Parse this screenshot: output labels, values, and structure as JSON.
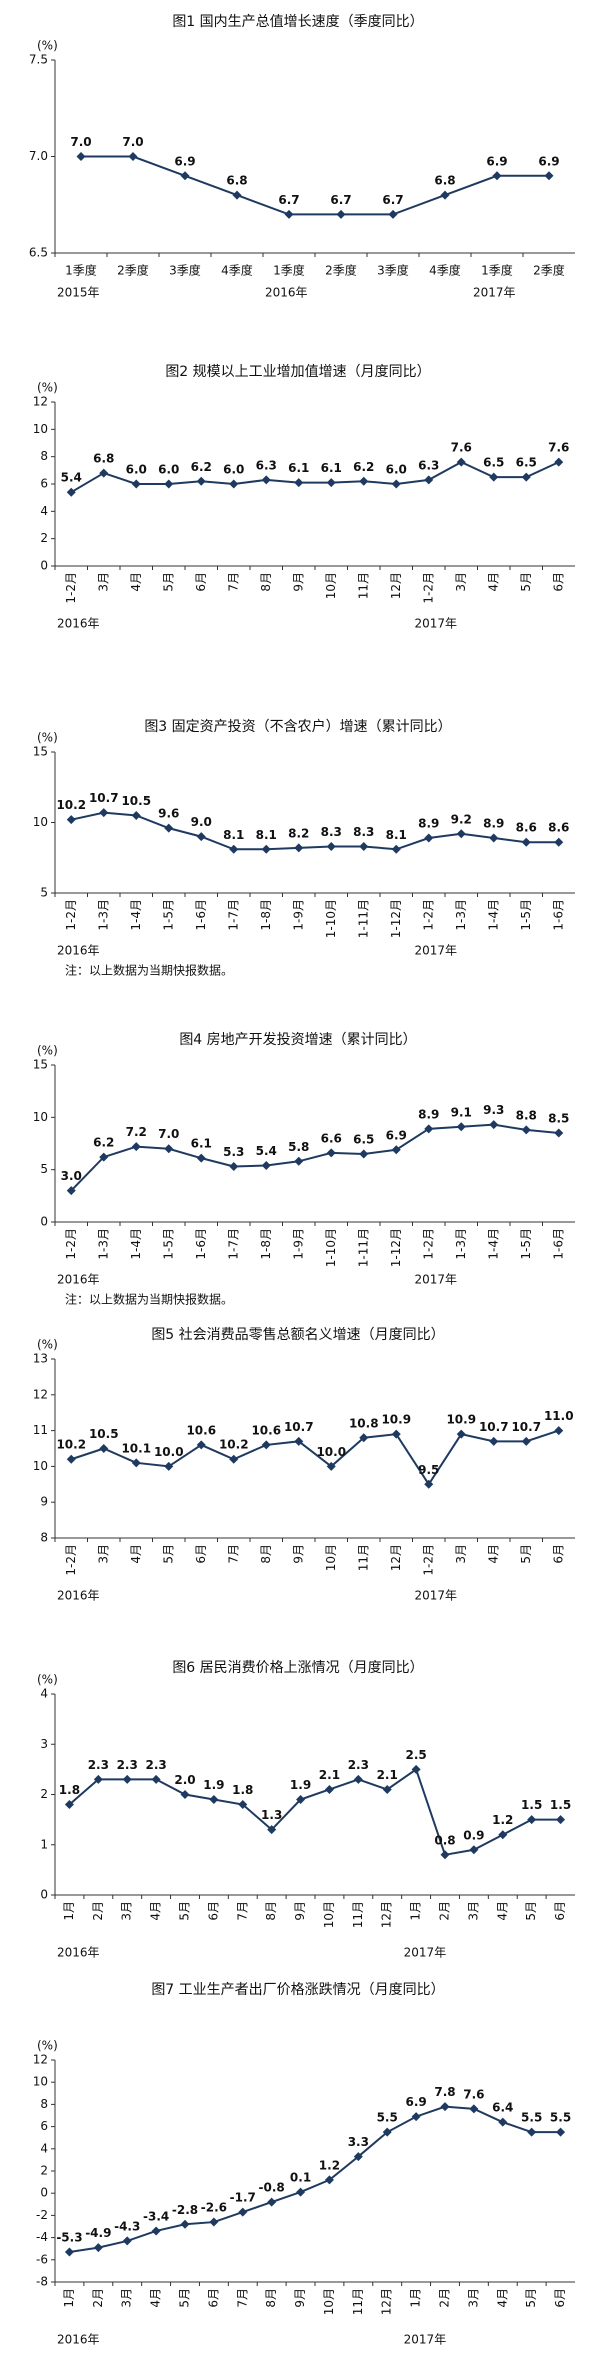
{
  "chart_data": [
    {
      "type": "line",
      "title": "图1  国内生产总值增长速度（季度同比）",
      "y_unit": "(%)",
      "color": "#1f3a60",
      "categories": [
        "1季度",
        "2季度",
        "3季度",
        "4季度",
        "1季度",
        "2季度",
        "3季度",
        "4季度",
        "1季度",
        "2季度"
      ],
      "year_labels": [
        "2015年",
        "2016年",
        "2017年"
      ],
      "values": [
        7.0,
        7.0,
        6.9,
        6.8,
        6.7,
        6.7,
        6.7,
        6.8,
        6.9,
        6.9
      ],
      "value_labels": [
        "7.0",
        "7.0",
        "6.9",
        "6.8",
        "6.7",
        "6.7",
        "6.7",
        "6.8",
        "6.9",
        "6.9"
      ],
      "ylim": [
        6.5,
        7.5
      ],
      "yticks": [
        6.5,
        {
          "value": 7,
          "label": "7.0"
        },
        7.5
      ]
    },
    {
      "type": "line",
      "title": "图2  规模以上工业增加值增速（月度同比）",
      "y_unit": "(%)",
      "color": "#1f3a60",
      "categories": [
        "1-2月",
        "3月",
        "4月",
        "5月",
        "6月",
        "7月",
        "8月",
        "9月",
        "10月",
        "11月",
        "12月",
        "1-2月",
        "3月",
        "4月",
        "5月",
        "6月"
      ],
      "year_labels": [
        "2016年",
        "2017年"
      ],
      "values": [
        5.4,
        6.8,
        6.0,
        6.0,
        6.2,
        6.0,
        6.3,
        6.1,
        6.1,
        6.2,
        6.0,
        6.3,
        7.6,
        6.5,
        6.5,
        7.6
      ],
      "value_labels": [
        "5.4",
        "6.8",
        "6.0",
        "6.0",
        "6.2",
        "6.0",
        "6.3",
        "6.1",
        "6.1",
        "6.2",
        "6.0",
        "6.3",
        "7.6",
        "6.5",
        "6.5",
        "7.6"
      ],
      "ylim": [
        0,
        12
      ],
      "yticks": [
        0,
        2,
        4,
        6,
        8,
        10,
        12
      ]
    },
    {
      "type": "line",
      "title": "图3  固定资产投资（不含农户）增速（累计同比）",
      "y_unit": "(%)",
      "color": "#1f3a60",
      "categories": [
        "1-2月",
        "1-3月",
        "1-4月",
        "1-5月",
        "1-6月",
        "1-7月",
        "1-8月",
        "1-9月",
        "1-10月",
        "1-11月",
        "1-12月",
        "1-2月",
        "1-3月",
        "1-4月",
        "1-5月",
        "1-6月"
      ],
      "year_labels": [
        "2016年",
        "2017年"
      ],
      "values": [
        10.2,
        10.7,
        10.5,
        9.6,
        9.0,
        8.1,
        8.1,
        8.2,
        8.3,
        8.3,
        8.1,
        8.9,
        9.2,
        8.9,
        8.6,
        8.6
      ],
      "value_labels": [
        "10.2",
        "10.7",
        "10.5",
        "9.6",
        "9.0",
        "8.1",
        "8.1",
        "8.2",
        "8.3",
        "8.3",
        "8.1",
        "8.9",
        "9.2",
        "8.9",
        "8.6",
        "8.6"
      ],
      "ylim": [
        5,
        15
      ],
      "yticks": [
        5,
        10,
        15
      ],
      "note": "注：以上数据为当期快报数据。"
    },
    {
      "type": "line",
      "title": "图4  房地产开发投资增速（累计同比）",
      "y_unit": "(%)",
      "color": "#1f3a60",
      "categories": [
        "1-2月",
        "1-3月",
        "1-4月",
        "1-5月",
        "1-6月",
        "1-7月",
        "1-8月",
        "1-9月",
        "1-10月",
        "1-11月",
        "1-12月",
        "1-2月",
        "1-3月",
        "1-4月",
        "1-5月",
        "1-6月"
      ],
      "year_labels": [
        "2016年",
        "2017年"
      ],
      "values": [
        3.0,
        6.2,
        7.2,
        7.0,
        6.1,
        5.3,
        5.4,
        5.8,
        6.6,
        6.5,
        6.9,
        8.9,
        9.1,
        9.3,
        8.8,
        8.5
      ],
      "value_labels": [
        "3.0",
        "6.2",
        "7.2",
        "7.0",
        "6.1",
        "5.3",
        "5.4",
        "5.8",
        "6.6",
        "6.5",
        "6.9",
        "8.9",
        "9.1",
        "9.3",
        "8.8",
        "8.5"
      ],
      "ylim": [
        0,
        15
      ],
      "yticks": [
        0,
        5,
        10,
        15
      ],
      "note": "注：以上数据为当期快报数据。"
    },
    {
      "type": "line",
      "title": "图5  社会消费品零售总额名义增速（月度同比）",
      "y_unit": "(%)",
      "color": "#1f3a60",
      "categories": [
        "1-2月",
        "3月",
        "4月",
        "5月",
        "6月",
        "7月",
        "8月",
        "9月",
        "10月",
        "11月",
        "12月",
        "1-2月",
        "3月",
        "4月",
        "5月",
        "6月"
      ],
      "year_labels": [
        "2016年",
        "2017年"
      ],
      "values": [
        10.2,
        10.5,
        10.1,
        10.0,
        10.6,
        10.2,
        10.6,
        10.7,
        10.0,
        10.8,
        10.9,
        9.5,
        10.9,
        10.7,
        10.7,
        11.0
      ],
      "value_labels": [
        "10.2",
        "10.5",
        "10.1",
        "10.0",
        "10.6",
        "10.2",
        "10.6",
        "10.7",
        "10.0",
        "10.8",
        "10.9",
        "9.5",
        "10.9",
        "10.7",
        "10.7",
        "11.0"
      ],
      "ylim": [
        8,
        13
      ],
      "yticks": [
        8,
        9,
        10,
        11,
        12,
        13
      ]
    },
    {
      "type": "line",
      "title": "图6  居民消费价格上涨情况（月度同比）",
      "y_unit": "(%)",
      "color": "#1f3a60",
      "categories": [
        "1月",
        "2月",
        "3月",
        "4月",
        "5月",
        "6月",
        "7月",
        "8月",
        "9月",
        "10月",
        "11月",
        "12月",
        "1月",
        "2月",
        "3月",
        "4月",
        "5月",
        "6月"
      ],
      "year_labels": [
        "2016年",
        "2017年"
      ],
      "values": [
        1.8,
        2.3,
        2.3,
        2.3,
        2.0,
        1.9,
        1.8,
        1.3,
        1.9,
        2.1,
        2.3,
        2.1,
        2.5,
        0.8,
        0.9,
        1.2,
        1.5,
        1.5
      ],
      "value_labels": [
        "1.8",
        "2.3",
        "2.3",
        "2.3",
        "2.0",
        "1.9",
        "1.8",
        "1.3",
        "1.9",
        "2.1",
        "2.3",
        "2.1",
        "2.5",
        "0.8",
        "0.9",
        "1.2",
        "1.5",
        "1.5"
      ],
      "ylim": [
        0,
        4
      ],
      "yticks": [
        0,
        1,
        2,
        3,
        4
      ]
    },
    {
      "type": "line",
      "title": "图7  工业生产者出厂价格涨跌情况（月度同比）",
      "y_unit": "(%)",
      "color": "#1f3a60",
      "categories": [
        "1月",
        "2月",
        "3月",
        "4月",
        "5月",
        "6月",
        "7月",
        "8月",
        "9月",
        "10月",
        "11月",
        "12月",
        "1月",
        "2月",
        "3月",
        "4月",
        "5月",
        "6月"
      ],
      "year_labels": [
        "2016年",
        "2017年"
      ],
      "values": [
        -5.3,
        -4.9,
        -4.3,
        -3.4,
        -2.8,
        -2.6,
        -1.7,
        -0.8,
        0.1,
        1.2,
        3.3,
        5.5,
        6.9,
        7.8,
        7.6,
        6.4,
        5.5,
        5.5
      ],
      "value_labels": [
        "-5.3",
        "-4.9",
        "-4.3",
        "-3.4",
        "-2.8",
        "-2.6",
        "-1.7",
        "-0.8",
        "0.1",
        "1.2",
        "3.3",
        "5.5",
        "6.9",
        "7.8",
        "7.6",
        "6.4",
        "5.5",
        "5.5"
      ],
      "ylim": [
        -8,
        12
      ],
      "yticks": [
        -8,
        -6,
        -4,
        -2,
        0,
        2,
        4,
        6,
        8,
        10,
        12
      ]
    }
  ]
}
